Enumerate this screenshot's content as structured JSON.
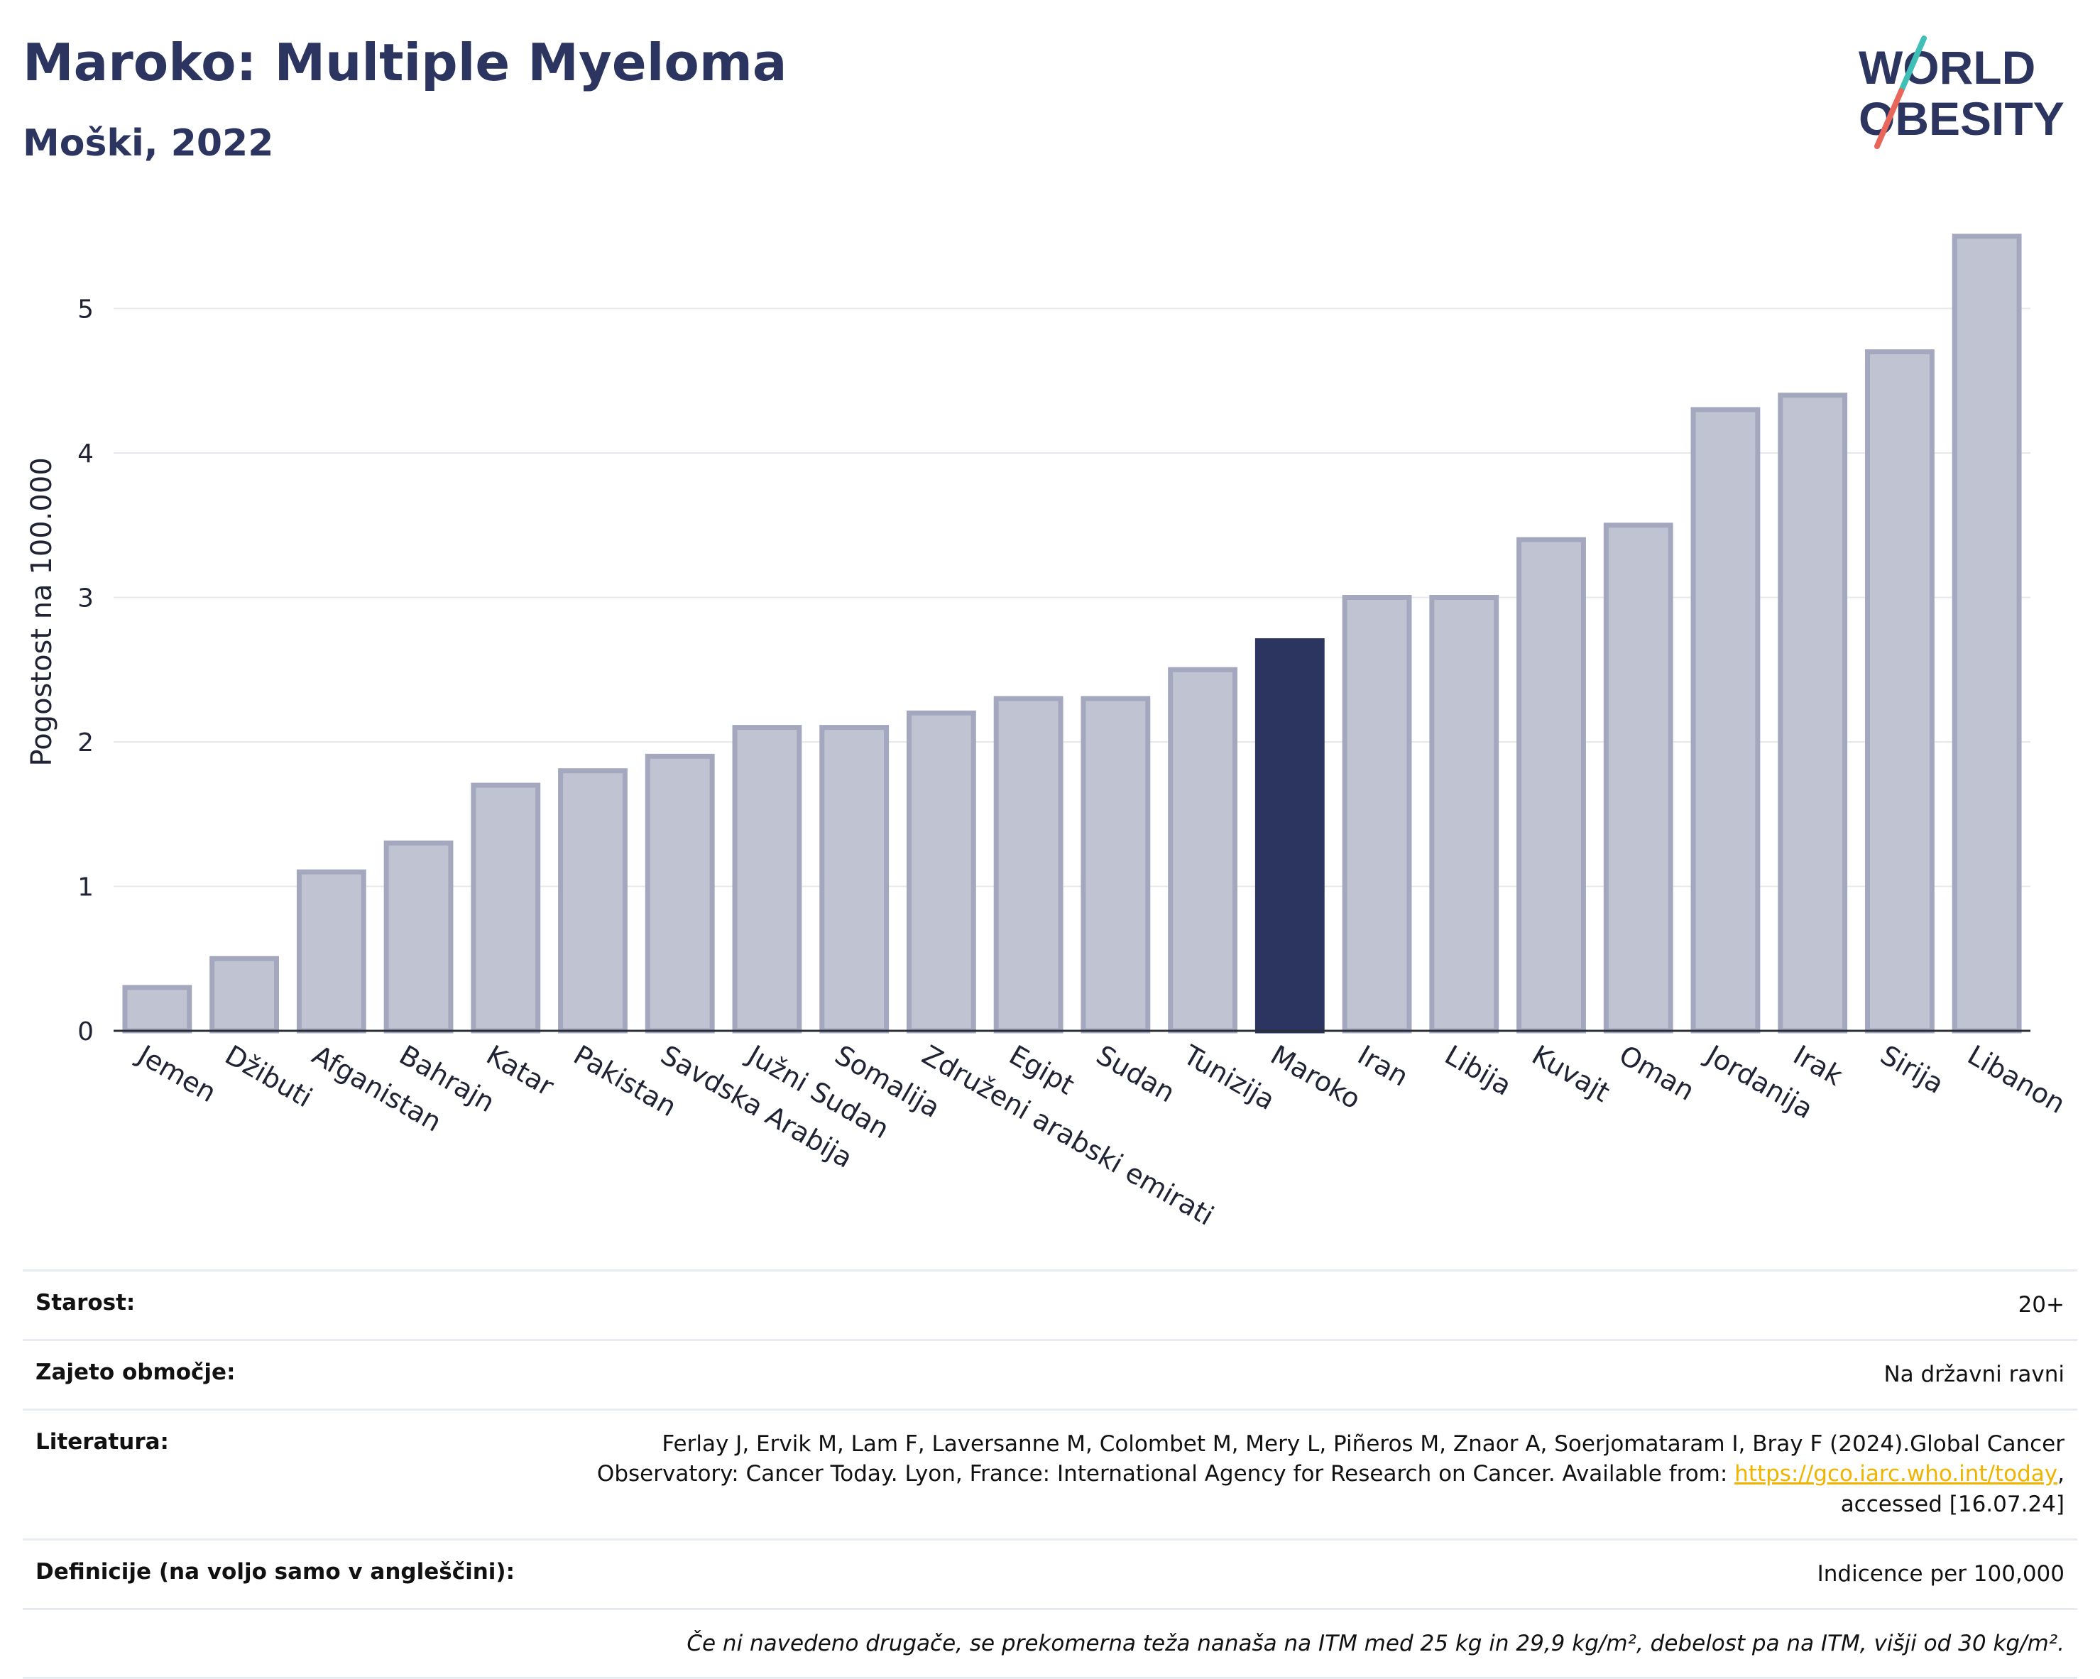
{
  "header": {
    "title": "Maroko: Multiple Myeloma",
    "subtitle": "Moški, 2022",
    "logo_line1": "WORLD",
    "logo_line2": "OBESITY"
  },
  "colors": {
    "navy": "#2b3560",
    "bar_default": "#c0c3d1",
    "bar_border": "#a3a8bf",
    "bar_highlight": "#2b3560",
    "logo_teal": "#3fbfb6",
    "logo_coral": "#e8675a",
    "link": "#f0b400"
  },
  "chart_data": {
    "type": "bar",
    "ylabel": "Pogostost na 100.000",
    "xlabel": "",
    "ylim": [
      0,
      5.7
    ],
    "yticks": [
      0,
      1,
      2,
      3,
      4,
      5
    ],
    "grid": true,
    "highlight": "Maroko",
    "categories": [
      "Jemen",
      "Džibuti",
      "Afganistan",
      "Bahrajn",
      "Katar",
      "Pakistan",
      "Savdska Arabija",
      "Južni Sudan",
      "Somalija",
      "Združeni arabski emirati",
      "Egipt",
      "Sudan",
      "Tunizija",
      "Maroko",
      "Iran",
      "Libija",
      "Kuvajt",
      "Oman",
      "Jordanija",
      "Irak",
      "Sirija",
      "Libanon"
    ],
    "values": [
      0.3,
      0.5,
      1.1,
      1.3,
      1.7,
      1.8,
      1.9,
      2.1,
      2.1,
      2.2,
      2.3,
      2.3,
      2.5,
      2.7,
      3.0,
      3.0,
      3.4,
      3.5,
      4.3,
      4.4,
      4.7,
      5.5
    ]
  },
  "meta": {
    "age_label": "Starost:",
    "age_value": "20+",
    "coverage_label": "Zajeto območje:",
    "coverage_value": "Na državni ravni",
    "refs_label": "Literatura:",
    "refs_line1": "Ferlay J, Ervik M, Lam F, Laversanne M, Colombet M, Mery L, Piñeros M, Znaor A, Soerjomataram I, Bray F (2024).Global Cancer",
    "refs_line2": "Observatory: Cancer Today. Lyon, France: International Agency for Research on Cancer. Available from:",
    "refs_link": "https://gco.iarc.who.int/today",
    "refs_line3": "accessed [16.07.24]",
    "defs_label": "Definicije (na voljo samo v angleščini):",
    "defs_value": "Indicence per 100,000",
    "note": "Če ni navedeno drugače, se prekomerna teža nanaša na ITM med 25 kg in 29,9 kg/m², debelost pa na ITM, višji od 30 kg/m²."
  }
}
